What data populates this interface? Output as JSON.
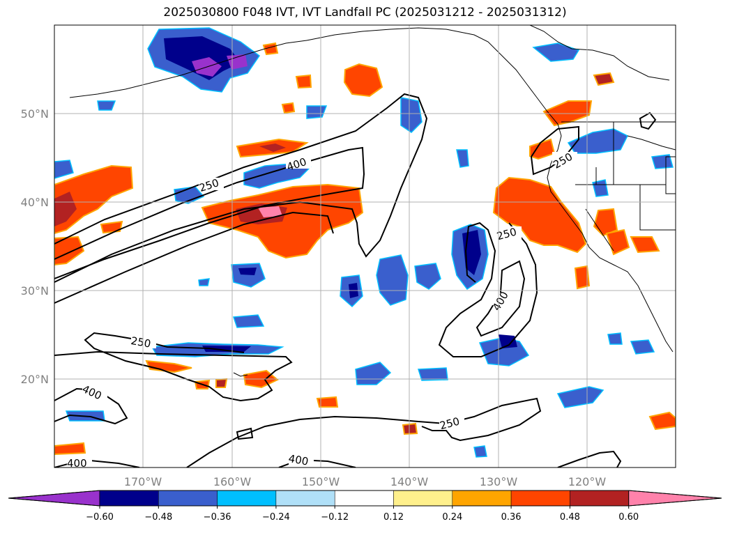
{
  "title": "2025030800 F048 IVT, IVT Landfall PC (2025031212 - 2025031312)",
  "map": {
    "lon_ticks": [
      "170°W",
      "160°W",
      "150°W",
      "140°W",
      "130°W",
      "120°W"
    ],
    "lat_ticks": [
      "50°N",
      "40°N",
      "30°N",
      "20°N"
    ],
    "contour_levels": [
      "250",
      "400"
    ]
  },
  "colorbar": {
    "ticks": [
      "−0.60",
      "−0.48",
      "−0.36",
      "−0.24",
      "−0.12",
      "0.12",
      "0.24",
      "0.36",
      "0.48",
      "0.60"
    ],
    "colors": [
      "#9932cc",
      "#00008b",
      "#3a5fcd",
      "#00bfff",
      "#b0e0f8",
      "#ffffff",
      "#fff08c",
      "#ffa500",
      "#ff4500",
      "#b22222",
      "#ff82ab"
    ]
  },
  "colors": {
    "contour": "#000000",
    "grid": "#b0b0b0",
    "coast": "#000000"
  }
}
